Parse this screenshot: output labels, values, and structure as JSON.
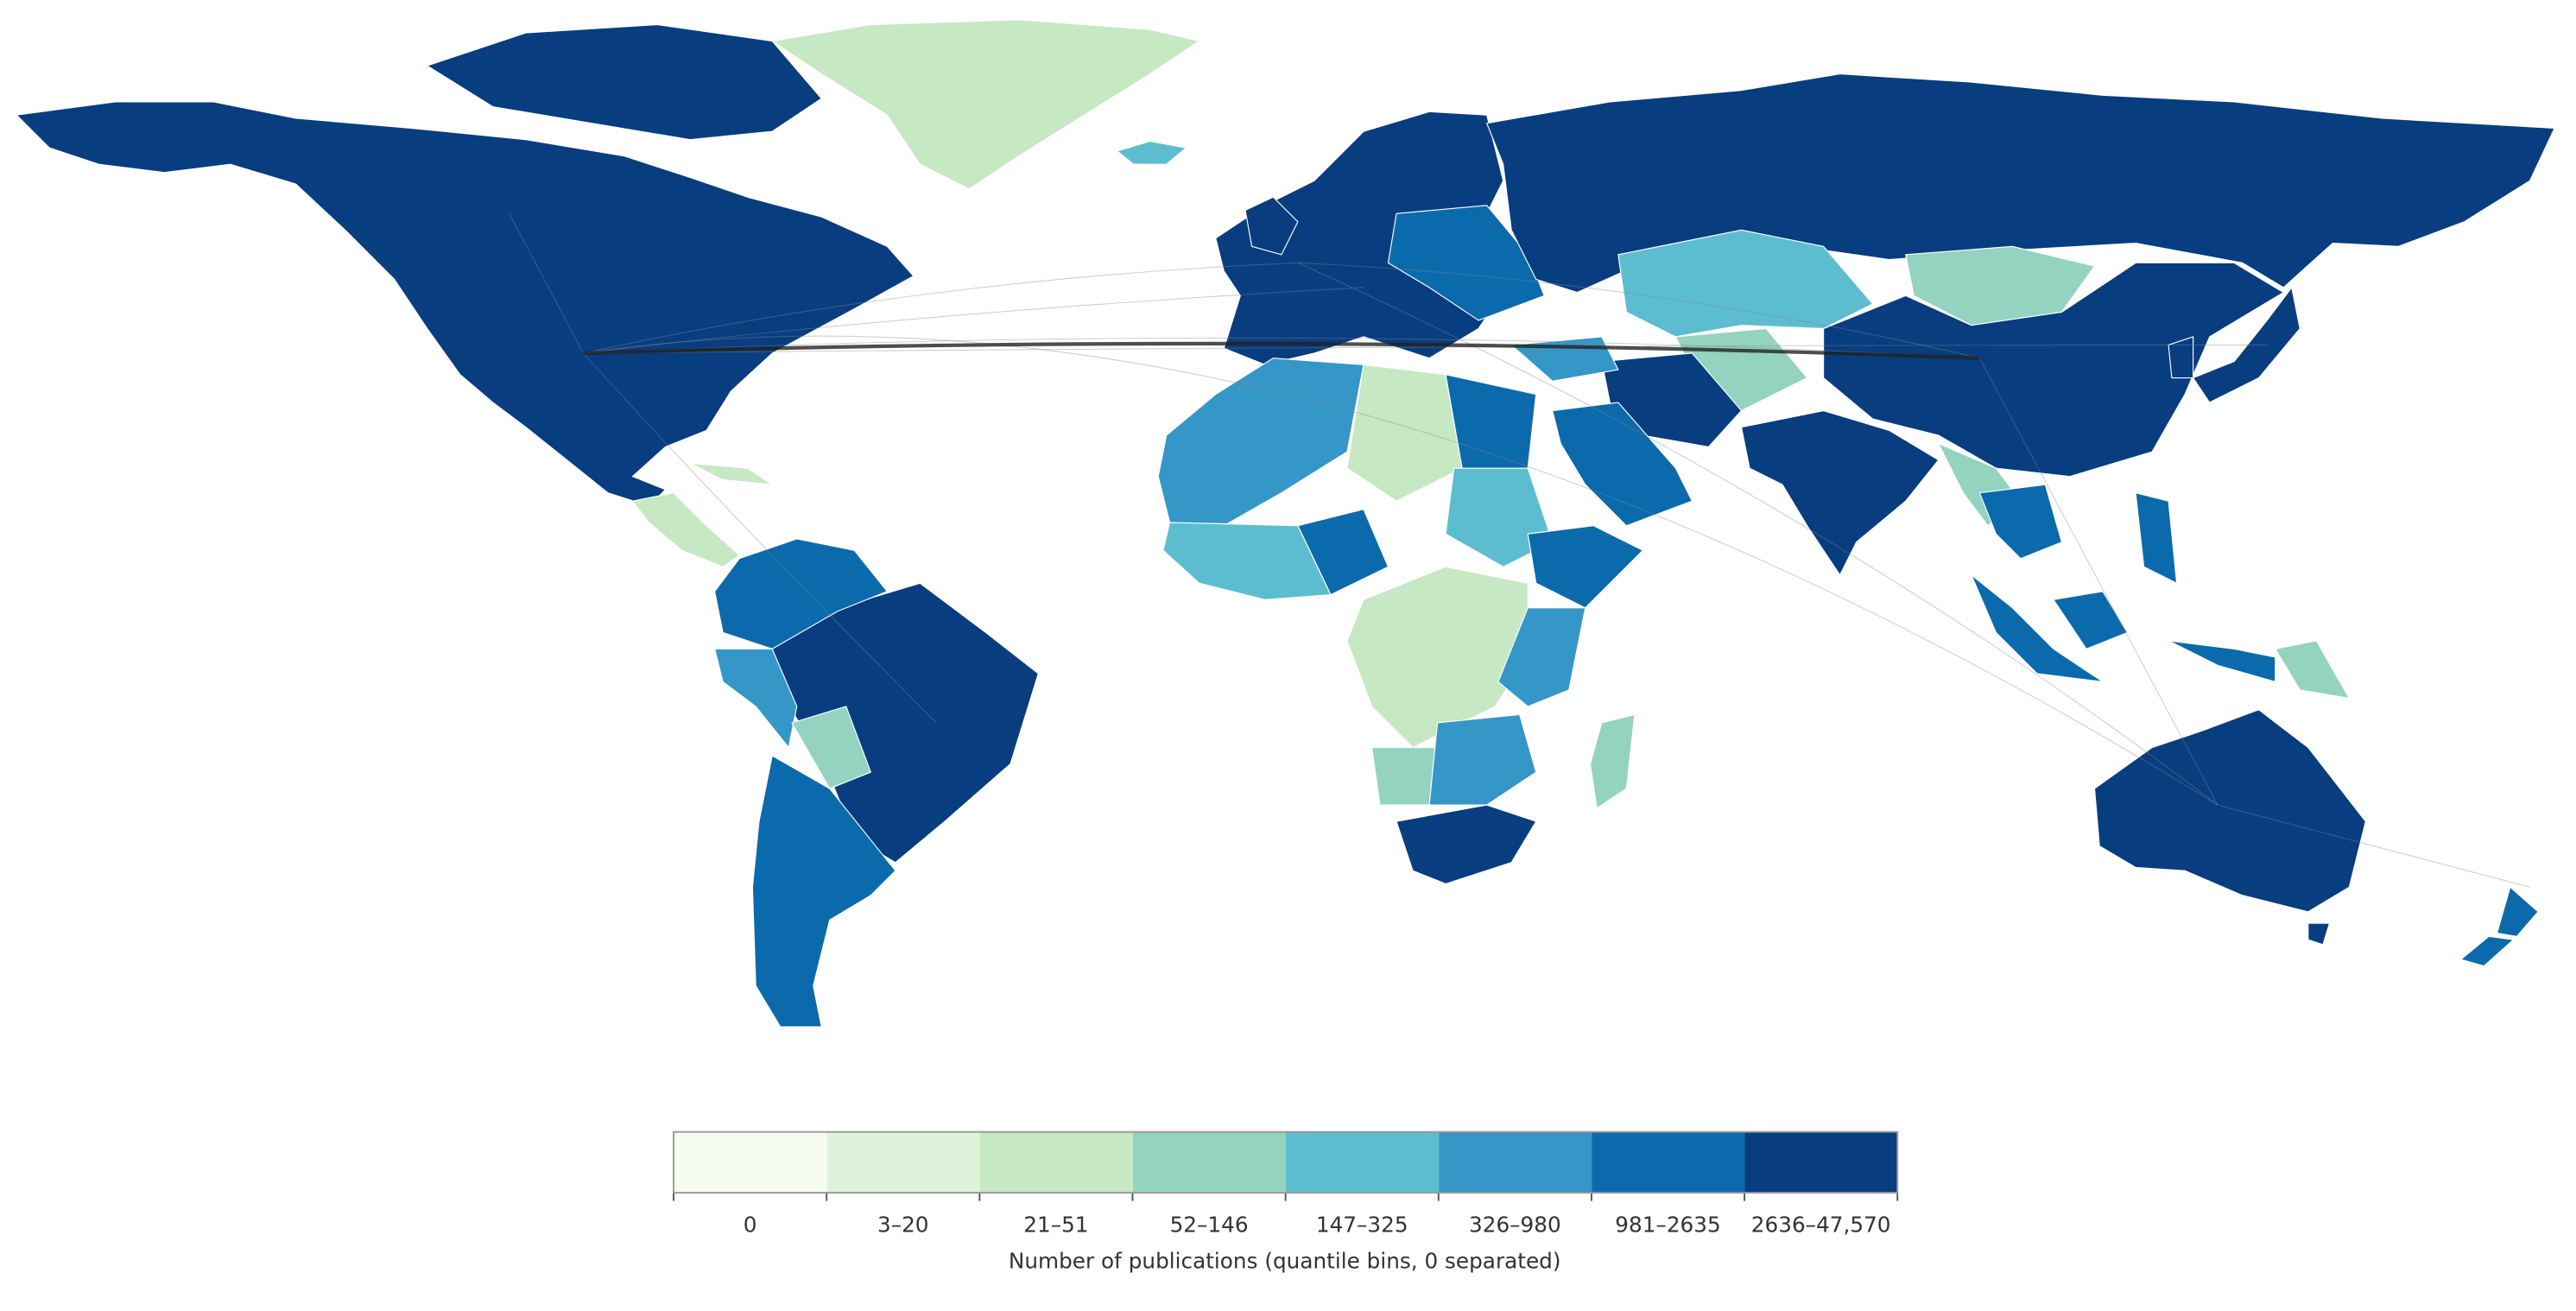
{
  "legend": {
    "title": "Number of publications (quantile bins, 0 separated)",
    "bins": [
      {
        "label": "0",
        "color": "#f7fcf0"
      },
      {
        "label": "3–20",
        "color": "#dff2da"
      },
      {
        "label": "21–51",
        "color": "#c6e8c2"
      },
      {
        "label": "52–146",
        "color": "#93d3bf"
      },
      {
        "label": "147–325",
        "color": "#5dbdd0"
      },
      {
        "label": "326–980",
        "color": "#3596c8"
      },
      {
        "label": "981–2635",
        "color": "#0b6aac"
      },
      {
        "label": "2636–47,570",
        "color": "#083d80"
      }
    ]
  }
}
